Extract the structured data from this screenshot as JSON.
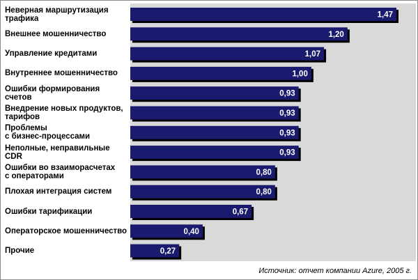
{
  "chart_data": {
    "type": "bar",
    "orientation": "horizontal",
    "categories": [
      "Неверная маршрутизация\nтрафика",
      "Внешнее мошенничество",
      "Управление кредитами",
      "Внутреннее мошенничество",
      "Ошибки формирования\nсчетов",
      "Внедрение новых продуктов,\nтарифов",
      "Проблемы\nс бизнес-процессами",
      "Неполные, неправильные CDR",
      "Ошибки во взаиморасчетах\nс операторами",
      "Плохая интеграция систем",
      "Ошибки тарификации",
      "Операторское мошенничество",
      "Прочие"
    ],
    "values": [
      1.47,
      1.2,
      1.07,
      1.0,
      0.93,
      0.93,
      0.93,
      0.93,
      0.8,
      0.8,
      0.67,
      0.4,
      0.27
    ],
    "value_labels": [
      "1,47",
      "1,20",
      "1,07",
      "1,00",
      "0,93",
      "0,93",
      "0,93",
      "0,93",
      "0,80",
      "0,80",
      "0,67",
      "0,40",
      "0,27"
    ],
    "xlim": [
      0,
      1.55
    ],
    "grid": false,
    "colors": {
      "bar": "#1a1a6e",
      "shadow": "#000000",
      "plot_bg": "#d9d9d9",
      "label_text": "#ffffff"
    }
  },
  "source_note": "Источник: отчет компании Azure, 2005 г."
}
